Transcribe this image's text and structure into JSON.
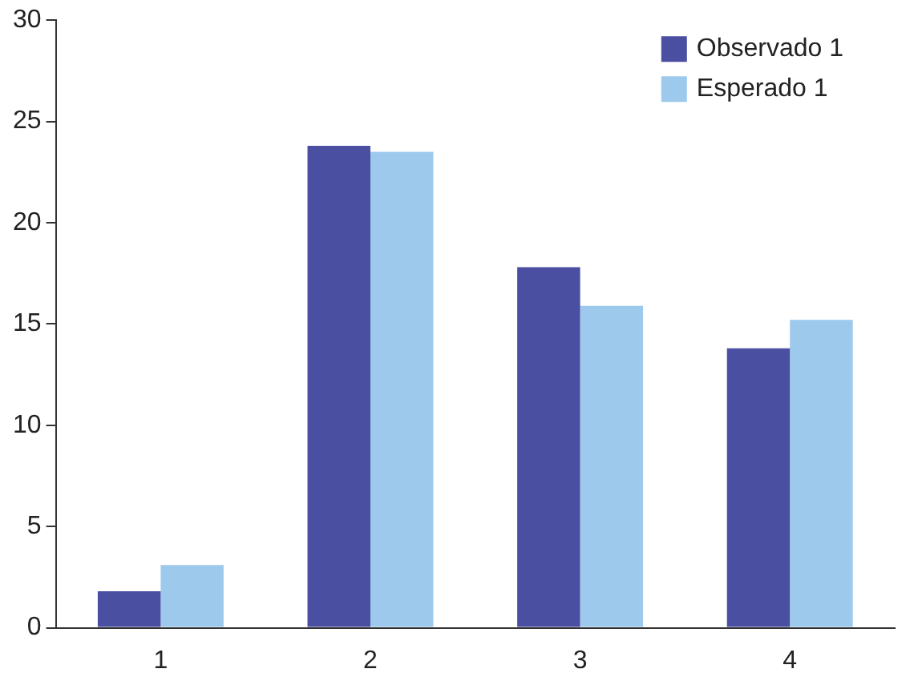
{
  "chart_data": {
    "type": "bar",
    "categories": [
      "1",
      "2",
      "3",
      "4"
    ],
    "series": [
      {
        "name": "Observado 1",
        "color": "#4b4fa2",
        "values": [
          1.8,
          23.8,
          17.8,
          13.8
        ]
      },
      {
        "name": "Esperado 1",
        "color": "#9dc9ec",
        "values": [
          3.1,
          23.5,
          15.9,
          15.2
        ]
      }
    ],
    "ylim": [
      0,
      30
    ],
    "yticks": [
      0,
      5,
      10,
      15,
      20,
      25,
      30
    ],
    "grid": false,
    "legend": "top right"
  }
}
